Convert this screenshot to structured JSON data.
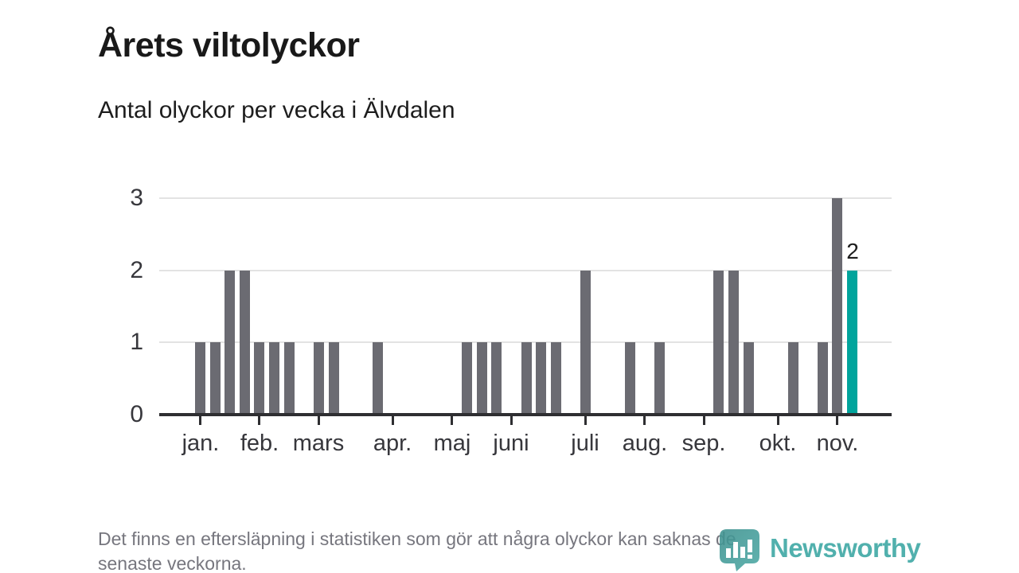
{
  "header": {
    "title": "Årets viltolyckor",
    "subtitle": "Antal olyckor per vecka i Älvdalen"
  },
  "chart_data": {
    "type": "bar",
    "title": "Årets viltolyckor",
    "subtitle": "Antal olyckor per vecka i Älvdalen",
    "x_unit": "vecka",
    "first_week": 1,
    "values": [
      1,
      1,
      2,
      2,
      1,
      1,
      1,
      0,
      1,
      1,
      0,
      0,
      1,
      0,
      0,
      0,
      0,
      0,
      1,
      1,
      1,
      0,
      1,
      1,
      1,
      0,
      2,
      0,
      0,
      1,
      0,
      1,
      0,
      0,
      0,
      2,
      2,
      1,
      0,
      0,
      1,
      0,
      1,
      3,
      2
    ],
    "ylim": [
      0,
      3
    ],
    "yticks": [
      0,
      1,
      2,
      3
    ],
    "grid": "horizontal",
    "xticks": [
      {
        "week": 1,
        "label": "jan."
      },
      {
        "week": 5,
        "label": "feb."
      },
      {
        "week": 9,
        "label": "mars"
      },
      {
        "week": 14,
        "label": "apr."
      },
      {
        "week": 18,
        "label": "maj"
      },
      {
        "week": 22,
        "label": "juni"
      },
      {
        "week": 27,
        "label": "juli"
      },
      {
        "week": 31,
        "label": "aug."
      },
      {
        "week": 35,
        "label": "sep."
      },
      {
        "week": 40,
        "label": "okt."
      },
      {
        "week": 44,
        "label": "nov."
      }
    ],
    "highlight": {
      "week": 45,
      "value": 2,
      "label": "2"
    }
  },
  "footnote": {
    "line1": "Det finns en eftersläpning i statistiken som gör att några olyckor kan saknas de",
    "line2": "senaste veckorna."
  },
  "brand": {
    "name": "Newsworthy"
  },
  "colors": {
    "bar": "#6b6b72",
    "highlight": "#00a49c",
    "axis": "#2e2e31",
    "grid": "#e3e3e3",
    "title_text": "#191919",
    "muted_text": "#76767e",
    "brand": "#3aa6a2"
  }
}
